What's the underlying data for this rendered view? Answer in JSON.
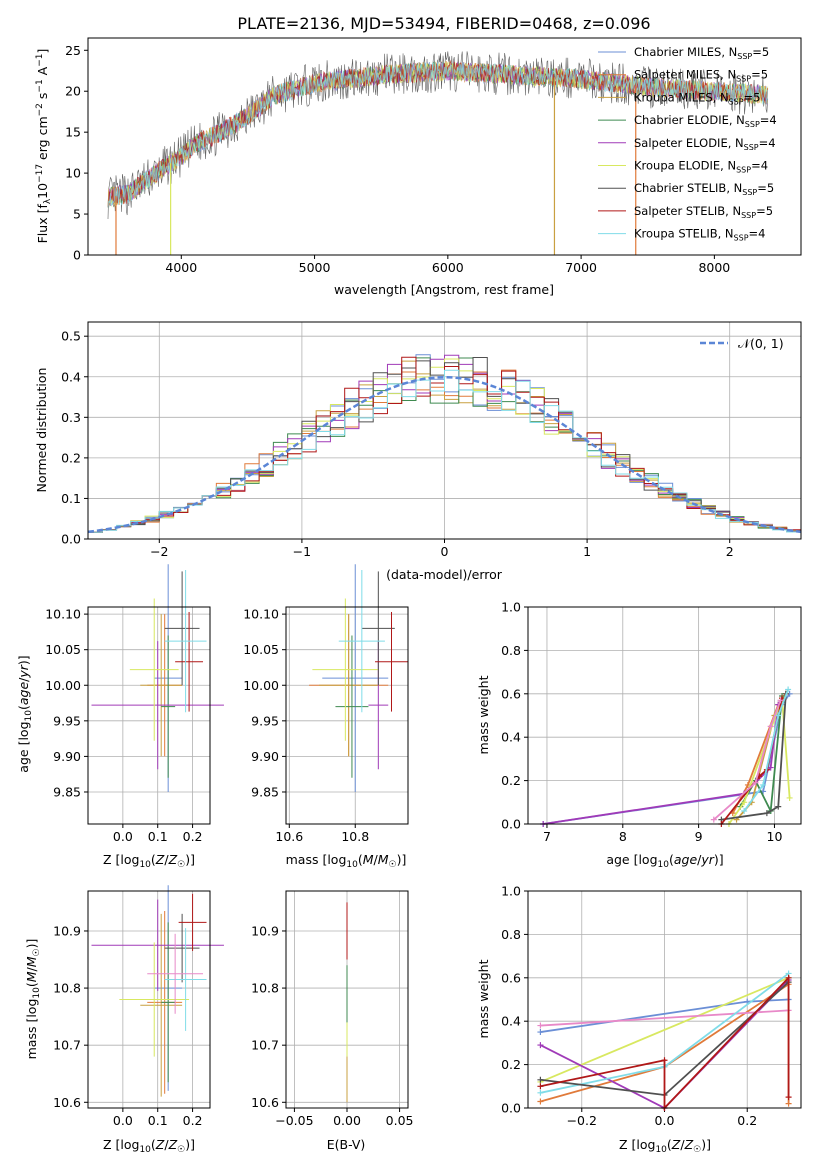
{
  "page_title": "PLATE=2136, MJD=53494, FIBERID=0468, z=0.096",
  "colors": {
    "Chabrier MILES": "#6b8fd6",
    "Salpeter MILES": "#e07a3a",
    "Kroupa MILES": "#c9a040",
    "Chabrier ELODIE": "#3f8a50",
    "Salpeter ELODIE": "#a03ab8",
    "Kroupa ELODIE": "#d8e860",
    "Chabrier STELIB": "#505050",
    "Salpeter STELIB": "#b01818",
    "Kroupa STELIB": "#80dce8",
    "normal": "#5b86d6",
    "mass_weight_extra": "#e889c8",
    "grid": "#b0b0b0"
  },
  "legend_top": [
    {
      "label": "Chabrier MILES, N",
      "sub": "SSP",
      "tail": "=5",
      "key": "Chabrier MILES"
    },
    {
      "label": "Salpeter MILES, N",
      "sub": "SSP",
      "tail": "=5",
      "key": "Salpeter MILES"
    },
    {
      "label": "Kroupa MILES, N",
      "sub": "SSP",
      "tail": "=5",
      "key": "Kroupa MILES"
    },
    {
      "label": "Chabrier ELODIE, N",
      "sub": "SSP",
      "tail": "=4",
      "key": "Chabrier ELODIE"
    },
    {
      "label": "Salpeter ELODIE, N",
      "sub": "SSP",
      "tail": "=4",
      "key": "Salpeter ELODIE"
    },
    {
      "label": "Kroupa ELODIE, N",
      "sub": "SSP",
      "tail": "=4",
      "key": "Kroupa ELODIE"
    },
    {
      "label": "Chabrier STELIB, N",
      "sub": "SSP",
      "tail": "=5",
      "key": "Chabrier STELIB"
    },
    {
      "label": "Salpeter STELIB, N",
      "sub": "SSP",
      "tail": "=5",
      "key": "Salpeter STELIB"
    },
    {
      "label": "Kroupa STELIB, N",
      "sub": "SSP",
      "tail": "=4",
      "key": "Kroupa STELIB"
    }
  ],
  "chart_data": [
    {
      "id": "spectrum",
      "type": "line",
      "xlabel": "wavelength [Angstrom, rest frame]",
      "ylabel_parts": {
        "a": "Flux [f",
        "b": "λ",
        "c": "10",
        "d": "−17",
        "e": " erg cm",
        "f": "−2",
        "g": " s",
        "h": "−1",
        "i": " A",
        "j": "−1",
        "k": "]"
      },
      "xlim": [
        3300,
        8650
      ],
      "ylim": [
        0,
        26.5
      ],
      "xticks": [
        4000,
        5000,
        6000,
        7000,
        8000
      ],
      "yticks": [
        0,
        5,
        10,
        15,
        20,
        25
      ],
      "continuum_points": [
        [
          3450,
          7
        ],
        [
          3600,
          7.5
        ],
        [
          3900,
          11
        ],
        [
          4000,
          12
        ],
        [
          4100,
          13.5
        ],
        [
          4300,
          15
        ],
        [
          4500,
          17
        ],
        [
          4700,
          19.5
        ],
        [
          5000,
          21
        ],
        [
          5500,
          22
        ],
        [
          6000,
          22.5
        ],
        [
          6500,
          22
        ],
        [
          7000,
          21.5
        ],
        [
          7500,
          20.5
        ],
        [
          8000,
          20
        ],
        [
          8400,
          19.5
        ]
      ],
      "spikes": [
        [
          3510,
          0
        ],
        [
          3920,
          0
        ],
        [
          6800,
          0
        ],
        [
          7410,
          0
        ]
      ]
    },
    {
      "id": "residuals",
      "type": "histogram",
      "xlabel": "(data-model)/error",
      "ylabel": "Normed distribution",
      "legend": "𝒩(0, 1)",
      "xlim": [
        -2.5,
        2.5
      ],
      "ylim": [
        0,
        0.535
      ],
      "xticks": [
        -2,
        -1,
        0,
        1,
        2
      ],
      "xtick_labels": [
        "−2",
        "−1",
        "0",
        "1",
        "2"
      ],
      "yticks": [
        0.0,
        0.1,
        0.2,
        0.3,
        0.4,
        0.5
      ],
      "ytick_labels": [
        "0.0",
        "0.1",
        "0.2",
        "0.3",
        "0.4",
        "0.5"
      ],
      "bin_width": 0.1
    },
    {
      "id": "age_vs_Z",
      "type": "errorbar",
      "xlabel": "Z [log10(Z/Z☉)]",
      "ylabel": "age  [log10(age/yr)]",
      "xlim": [
        -0.1,
        0.25
      ],
      "ylim": [
        9.805,
        10.11
      ],
      "xticks": [
        0.0,
        0.1,
        0.2
      ],
      "xtick_labels": [
        "0.0",
        "0.1",
        "0.2"
      ],
      "yticks": [
        9.85,
        9.9,
        9.95,
        10.0,
        10.05,
        10.1
      ],
      "ytick_labels": [
        "9.85",
        "9.90",
        "9.95",
        "10.00",
        "10.05",
        "10.10"
      ],
      "points": [
        {
          "key": "Chabrier MILES",
          "x": 0.13,
          "xe": 0.04,
          "y": 10.01,
          "ye": 0.16
        },
        {
          "key": "Salpeter MILES",
          "x": 0.12,
          "xe": 0.05,
          "y": 10.0,
          "ye": 0.1
        },
        {
          "key": "Kroupa MILES",
          "x": 0.11,
          "xe": 0.06,
          "y": 10.0,
          "ye": 0.1
        },
        {
          "key": "Chabrier ELODIE",
          "x": 0.13,
          "xe": 0.02,
          "y": 9.97,
          "ye": 0.1
        },
        {
          "key": "Salpeter ELODIE",
          "x": 0.1,
          "xe": 0.19,
          "y": 9.972,
          "ye": 0.09
        },
        {
          "key": "Kroupa ELODIE",
          "x": 0.09,
          "xe": 0.07,
          "y": 10.022,
          "ye": 0.1
        },
        {
          "key": "Chabrier STELIB",
          "x": 0.17,
          "xe": 0.05,
          "y": 10.08,
          "ye": 0.08
        },
        {
          "key": "Salpeter STELIB",
          "x": 0.19,
          "xe": 0.04,
          "y": 10.033,
          "ye": 0.07
        },
        {
          "key": "Kroupa STELIB",
          "x": 0.18,
          "xe": 0.06,
          "y": 10.062,
          "ye": 0.1
        }
      ]
    },
    {
      "id": "age_vs_mass",
      "type": "errorbar",
      "xlabel": "mass [log10(M/M☉)]",
      "xlim": [
        10.59,
        10.96
      ],
      "ylim": [
        9.805,
        10.11
      ],
      "xticks": [
        10.6,
        10.8
      ],
      "xtick_labels": [
        "10.6",
        "10.8"
      ],
      "yticks": [
        9.85,
        9.9,
        9.95,
        10.0,
        10.05,
        10.1
      ],
      "ytick_labels": [
        "9.85",
        "9.90",
        "9.95",
        "10.00",
        "10.05",
        "10.10"
      ],
      "points": [
        {
          "key": "Chabrier MILES",
          "x": 10.8,
          "xe": 0.1,
          "y": 10.01,
          "ye": 0.16
        },
        {
          "key": "Salpeter MILES",
          "x": 10.78,
          "xe": 0.12,
          "y": 10.0,
          "ye": 0.1
        },
        {
          "key": "Kroupa MILES",
          "x": 10.78,
          "xe": 0.09,
          "y": 10.0,
          "ye": 0.1
        },
        {
          "key": "Chabrier ELODIE",
          "x": 10.79,
          "xe": 0.05,
          "y": 9.97,
          "ye": 0.1
        },
        {
          "key": "Salpeter ELODIE",
          "x": 10.87,
          "xe": 0.03,
          "y": 9.972,
          "ye": 0.09
        },
        {
          "key": "Kroupa ELODIE",
          "x": 10.77,
          "xe": 0.1,
          "y": 10.022,
          "ye": 0.1
        },
        {
          "key": "Chabrier STELIB",
          "x": 10.87,
          "xe": 0.05,
          "y": 10.08,
          "ye": 0.08
        },
        {
          "key": "Salpeter STELIB",
          "x": 10.91,
          "xe": 0.05,
          "y": 10.033,
          "ye": 0.07
        },
        {
          "key": "Kroupa STELIB",
          "x": 10.82,
          "xe": 0.07,
          "y": 10.062,
          "ye": 0.1
        }
      ]
    },
    {
      "id": "weight_vs_age",
      "type": "line",
      "xlabel": "age  [log10(age/yr)]",
      "ylabel": "mass weight",
      "xlim": [
        6.75,
        10.35
      ],
      "ylim": [
        0,
        1.0
      ],
      "xticks": [
        7,
        8,
        9,
        10
      ],
      "xtick_labels": [
        "7",
        "8",
        "9",
        "10"
      ],
      "yticks": [
        0.0,
        0.2,
        0.4,
        0.6,
        0.8,
        1.0
      ],
      "ytick_labels": [
        "0.0",
        "0.2",
        "0.4",
        "0.6",
        "0.8",
        "1.0"
      ],
      "series": [
        {
          "key": "Chabrier MILES",
          "points": [
            [
              6.95,
              0.0
            ],
            [
              9.85,
              0.15
            ],
            [
              10.1,
              0.55
            ],
            [
              10.2,
              0.6
            ]
          ]
        },
        {
          "key": "Salpeter MILES",
          "points": [
            [
              9.45,
              0.05
            ],
            [
              9.65,
              0.18
            ],
            [
              10.05,
              0.55
            ],
            [
              10.15,
              0.6
            ]
          ]
        },
        {
          "key": "Kroupa MILES",
          "points": [
            [
              9.5,
              0.02
            ],
            [
              9.7,
              0.1
            ],
            [
              10.0,
              0.5
            ],
            [
              10.12,
              0.58
            ]
          ]
        },
        {
          "key": "Chabrier ELODIE",
          "points": [
            [
              9.55,
              0.08
            ],
            [
              9.75,
              0.2
            ],
            [
              9.95,
              0.06
            ],
            [
              10.1,
              0.59
            ]
          ]
        },
        {
          "key": "Salpeter ELODIE",
          "points": [
            [
              6.95,
              0.0
            ],
            [
              9.6,
              0.14
            ],
            [
              9.95,
              0.26
            ],
            [
              10.05,
              0.55
            ]
          ]
        },
        {
          "key": "Kroupa ELODIE",
          "points": [
            [
              9.4,
              0.0
            ],
            [
              9.6,
              0.1
            ],
            [
              10.1,
              0.58
            ],
            [
              10.2,
              0.12
            ]
          ]
        },
        {
          "key": "Chabrier STELIB",
          "points": [
            [
              9.3,
              0.02
            ],
            [
              9.9,
              0.05
            ],
            [
              10.05,
              0.08
            ],
            [
              10.15,
              0.6
            ]
          ]
        },
        {
          "key": "Salpeter STELIB",
          "points": [
            [
              9.3,
              0.0
            ],
            [
              9.8,
              0.22
            ],
            [
              9.9,
              0.25
            ],
            [
              10.1,
              0.58
            ]
          ]
        },
        {
          "key": "Kroupa STELIB",
          "points": [
            [
              9.6,
              0.06
            ],
            [
              9.85,
              0.18
            ],
            [
              10.05,
              0.5
            ],
            [
              10.18,
              0.62
            ]
          ]
        },
        {
          "key": "mass_weight_extra",
          "points": [
            [
              9.2,
              0.02
            ],
            [
              9.75,
              0.19
            ],
            [
              9.95,
              0.45
            ],
            [
              10.08,
              0.57
            ]
          ]
        }
      ]
    },
    {
      "id": "mass_vs_Z",
      "type": "errorbar",
      "xlabel": "Z [log10(Z/Z☉)]",
      "ylabel": "mass [log10(M/M☉)]",
      "xlim": [
        -0.1,
        0.25
      ],
      "ylim": [
        10.59,
        10.97
      ],
      "xticks": [
        0.0,
        0.1,
        0.2
      ],
      "xtick_labels": [
        "0.0",
        "0.1",
        "0.2"
      ],
      "yticks": [
        10.6,
        10.7,
        10.8,
        10.9
      ],
      "ytick_labels": [
        "10.6",
        "10.7",
        "10.8",
        "10.9"
      ],
      "points": [
        {
          "key": "Chabrier MILES",
          "x": 0.13,
          "xe": 0.04,
          "y": 10.8,
          "ye": 0.18
        },
        {
          "key": "Salpeter MILES",
          "x": 0.12,
          "xe": 0.05,
          "y": 10.775,
          "ye": 0.16
        },
        {
          "key": "Kroupa MILES",
          "x": 0.11,
          "xe": 0.06,
          "y": 10.77,
          "ye": 0.16
        },
        {
          "key": "Chabrier ELODIE",
          "x": 0.13,
          "xe": 0.02,
          "y": 10.775,
          "ye": 0.14
        },
        {
          "key": "Salpeter ELODIE",
          "x": 0.1,
          "xe": 0.19,
          "y": 10.875,
          "ye": 0.08
        },
        {
          "key": "Kroupa ELODIE",
          "x": 0.09,
          "xe": 0.1,
          "y": 10.78,
          "ye": 0.1
        },
        {
          "key": "Chabrier STELIB",
          "x": 0.17,
          "xe": 0.05,
          "y": 10.87,
          "ye": 0.06
        },
        {
          "key": "Salpeter STELIB",
          "x": 0.2,
          "xe": 0.04,
          "y": 10.915,
          "ye": 0.05
        },
        {
          "key": "Kroupa STELIB",
          "x": 0.18,
          "xe": 0.06,
          "y": 10.815,
          "ye": 0.09
        },
        {
          "key": "mass_weight_extra",
          "x": 0.15,
          "xe": 0.08,
          "y": 10.825,
          "ye": 0.07
        }
      ]
    },
    {
      "id": "mass_vs_ebv",
      "type": "errorbar",
      "xlabel": "E(B-V)",
      "xlim": [
        -0.058,
        0.058
      ],
      "ylim": [
        10.59,
        10.97
      ],
      "xticks": [
        -0.05,
        0.0,
        0.05
      ],
      "xtick_labels": [
        "−0.05",
        "0.00",
        "0.05"
      ],
      "yticks": [
        10.6,
        10.7,
        10.8,
        10.9
      ],
      "ytick_labels": [
        "10.6",
        "10.7",
        "10.8",
        "10.9"
      ],
      "points": [
        {
          "key": "Kroupa MILES",
          "x": 0.0,
          "xe": 0.0,
          "y": 10.65,
          "ye": 0.05
        },
        {
          "key": "Kroupa ELODIE",
          "x": 0.0,
          "xe": 0.0,
          "y": 10.73,
          "ye": 0.05
        },
        {
          "key": "Chabrier ELODIE",
          "x": 0.0,
          "xe": 0.0,
          "y": 10.79,
          "ye": 0.05
        },
        {
          "key": "Salpeter STELIB",
          "x": 0.0,
          "xe": 0.0,
          "y": 10.9,
          "ye": 0.05
        }
      ]
    },
    {
      "id": "weight_vs_Z",
      "type": "line",
      "xlabel": "Z [log10(Z/Z☉)]",
      "ylabel": "mass weight",
      "xlim": [
        -0.33,
        0.33
      ],
      "ylim": [
        0,
        1.0
      ],
      "xticks": [
        -0.2,
        0.0,
        0.2
      ],
      "xtick_labels": [
        "−0.2",
        "0.0",
        "0.2"
      ],
      "yticks": [
        0.0,
        0.2,
        0.4,
        0.6,
        0.8,
        1.0
      ],
      "ytick_labels": [
        "0.0",
        "0.2",
        "0.4",
        "0.6",
        "0.8",
        "1.0"
      ],
      "series": [
        {
          "key": "Chabrier MILES",
          "points": [
            [
              -0.3,
              0.35
            ],
            [
              0.2,
              0.49
            ],
            [
              0.3,
              0.5
            ]
          ]
        },
        {
          "key": "Salpeter MILES",
          "points": [
            [
              -0.3,
              0.03
            ],
            [
              0.0,
              0.19
            ],
            [
              0.3,
              0.57
            ],
            [
              0.3,
              0.02
            ]
          ]
        },
        {
          "key": "Kroupa ELODIE",
          "points": [
            [
              -0.3,
              0.12
            ],
            [
              0.3,
              0.6
            ]
          ]
        },
        {
          "key": "Salpeter ELODIE",
          "points": [
            [
              -0.3,
              0.29
            ],
            [
              0.0,
              0.0
            ],
            [
              0.3,
              0.59
            ]
          ]
        },
        {
          "key": "mass_weight_extra",
          "points": [
            [
              -0.3,
              0.38
            ],
            [
              0.3,
              0.45
            ]
          ]
        },
        {
          "key": "Kroupa STELIB",
          "points": [
            [
              -0.3,
              0.07
            ],
            [
              0.0,
              0.19
            ],
            [
              0.3,
              0.62
            ]
          ]
        },
        {
          "key": "Chabrier STELIB",
          "points": [
            [
              -0.3,
              0.13
            ],
            [
              0.0,
              0.06
            ],
            [
              0.3,
              0.58
            ]
          ]
        },
        {
          "key": "Salpeter STELIB",
          "points": [
            [
              -0.3,
              0.1
            ],
            [
              0.0,
              0.22
            ],
            [
              0.0,
              0.0
            ],
            [
              0.3,
              0.6
            ],
            [
              0.3,
              0.05
            ]
          ]
        }
      ]
    }
  ]
}
